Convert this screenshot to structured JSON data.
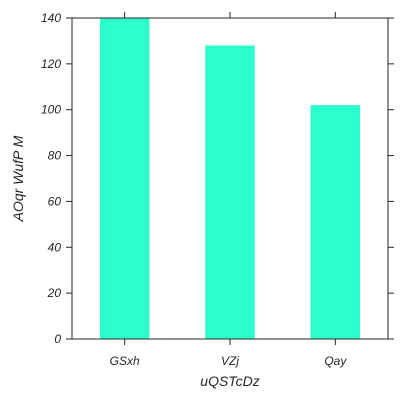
{
  "chart_data": {
    "type": "bar",
    "categories": [
      "GSxh",
      "VZj",
      "Qay"
    ],
    "values": [
      140,
      128,
      102
    ],
    "xlabel": "uQSTcDz",
    "ylabel": "AOqr WufP M",
    "ylim": [
      0,
      140
    ],
    "yticks": [
      0,
      20,
      40,
      60,
      80,
      100,
      120,
      140
    ],
    "bar_color": "#2cffcc",
    "grid": false
  }
}
